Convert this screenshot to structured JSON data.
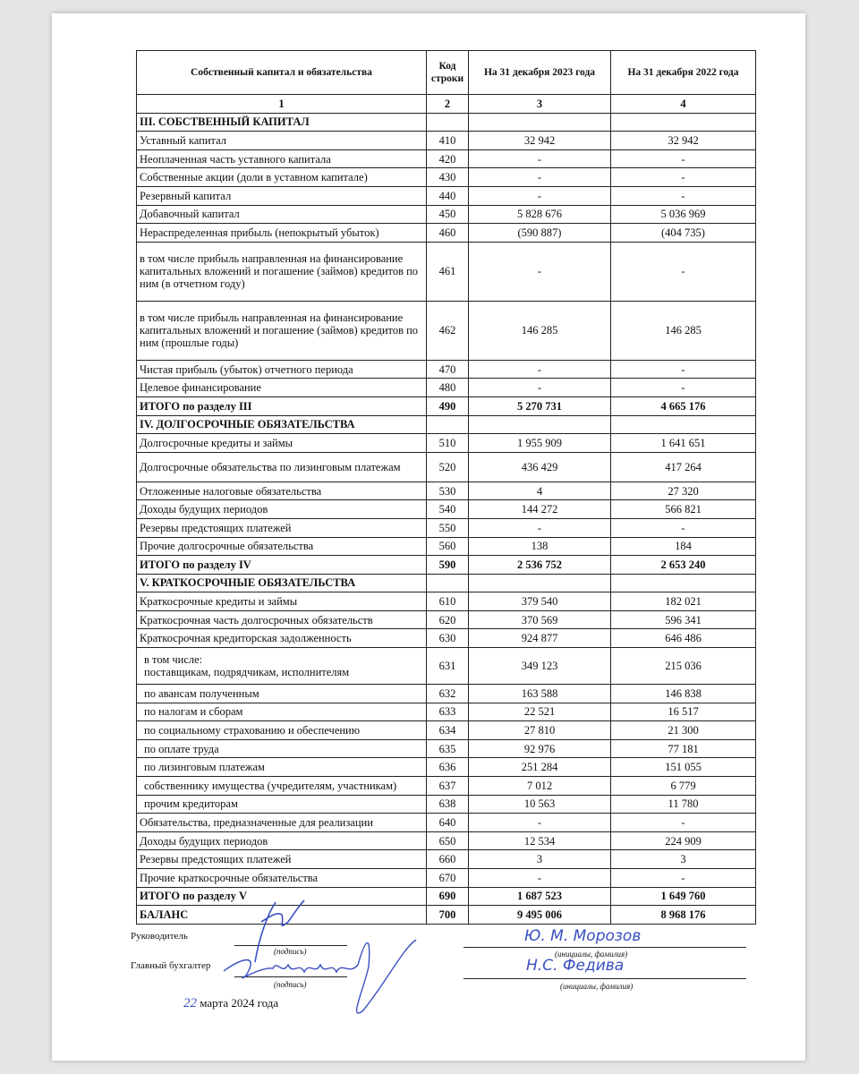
{
  "table": {
    "headers": [
      "Собственный капитал и обязательства",
      "Код строки",
      "На 31 декабря 2023 года",
      "На 31 декабря 2022 года"
    ],
    "column_numbers": [
      "1",
      "2",
      "3",
      "4"
    ],
    "rows": [
      {
        "name": "III. СОБСТВЕННЫЙ КАПИТАЛ",
        "code": "",
        "v2023": "",
        "v2022": "",
        "type": "sec"
      },
      {
        "name": "Уставный капитал",
        "code": "410",
        "v2023": "32 942",
        "v2022": "32 942"
      },
      {
        "name": "Неоплаченная часть уставного капитала",
        "code": "420",
        "v2023": "-",
        "v2022": "-"
      },
      {
        "name": "Собственные акции (доли в уставном капитале)",
        "code": "430",
        "v2023": "-",
        "v2022": "-"
      },
      {
        "name": "Резервный капитал",
        "code": "440",
        "v2023": "-",
        "v2022": "-"
      },
      {
        "name": "Добавочный капитал",
        "code": "450",
        "v2023": "5 828 676",
        "v2022": "5 036 969"
      },
      {
        "name": "Нераспределенная прибыль (непокрытый убыток)",
        "code": "460",
        "v2023": "(590 887)",
        "v2022": "(404 735)"
      },
      {
        "name": "в том числе прибыль направленная на финансирование капитальных вложений и погашение (займов) кредитов по ним (в отчетном году)",
        "code": "461",
        "v2023": "-",
        "v2022": "-",
        "type": "tall"
      },
      {
        "name": "в том числе прибыль направленная на финансирование капитальных вложений и погашение (займов) кредитов по ним (прошлые годы)",
        "code": "462",
        "v2023": "146 285",
        "v2022": "146 285",
        "type": "tall"
      },
      {
        "name": "Чистая прибыль (убыток) отчетного периода",
        "code": "470",
        "v2023": "-",
        "v2022": "-"
      },
      {
        "name": "Целевое финансирование",
        "code": "480",
        "v2023": "-",
        "v2022": "-"
      },
      {
        "name": "ИТОГО по разделу III",
        "code": "490",
        "v2023": "5 270 731",
        "v2022": "4 665 176",
        "type": "b"
      },
      {
        "name": "IV. ДОЛГОСРОЧНЫЕ ОБЯЗАТЕЛЬСТВА",
        "code": "",
        "v2023": "",
        "v2022": "",
        "type": "sec"
      },
      {
        "name": "Долгосрочные кредиты и займы",
        "code": "510",
        "v2023": "1 955 909",
        "v2022": "1 641 651"
      },
      {
        "name": "Долгосрочные обязательства по лизинговым платежам",
        "code": "520",
        "v2023": "436 429",
        "v2022": "417 264",
        "type": "mid"
      },
      {
        "name": "Отложенные налоговые обязательства",
        "code": "530",
        "v2023": "4",
        "v2022": "27 320"
      },
      {
        "name": "Доходы будущих периодов",
        "code": "540",
        "v2023": "144 272",
        "v2022": "566 821"
      },
      {
        "name": "Резервы предстоящих платежей",
        "code": "550",
        "v2023": "-",
        "v2022": "-"
      },
      {
        "name": "Прочие долгосрочные обязательства",
        "code": "560",
        "v2023": "138",
        "v2022": "184"
      },
      {
        "name": "ИТОГО по разделу IV",
        "code": "590",
        "v2023": "2 536 752",
        "v2022": "2 653 240",
        "type": "b"
      },
      {
        "name": "V. КРАТКОСРОЧНЫЕ ОБЯЗАТЕЛЬСТВА",
        "code": "",
        "v2023": "",
        "v2022": "",
        "type": "sec"
      },
      {
        "name": "Краткосрочные кредиты и займы",
        "code": "610",
        "v2023": "379 540",
        "v2022": "182 021"
      },
      {
        "name": "Краткосрочная часть долгосрочных обязательств",
        "code": "620",
        "v2023": "370 569",
        "v2022": "596 341"
      },
      {
        "name": "Краткосрочная кредиторская задолженность",
        "code": "630",
        "v2023": "924 877",
        "v2022": "646 486"
      },
      {
        "name": "в том числе:\nпоставщикам, подрядчикам, исполнителям",
        "code": "631",
        "v2023": "349 123",
        "v2022": "215 036",
        "type": "two ind"
      },
      {
        "name": "по авансам полученным",
        "code": "632",
        "v2023": "163 588",
        "v2022": "146 838",
        "type": "ind"
      },
      {
        "name": "по налогам и сборам",
        "code": "633",
        "v2023": "22 521",
        "v2022": "16 517",
        "type": "ind"
      },
      {
        "name": "по социальному страхованию и обеспечению",
        "code": "634",
        "v2023": "27 810",
        "v2022": "21 300",
        "type": "ind"
      },
      {
        "name": "по оплате труда",
        "code": "635",
        "v2023": "92 976",
        "v2022": "77 181",
        "type": "ind"
      },
      {
        "name": "по лизинговым платежам",
        "code": "636",
        "v2023": "251 284",
        "v2022": "151 055",
        "type": "ind"
      },
      {
        "name": "собственнику имущества (учредителям, участникам)",
        "code": "637",
        "v2023": "7 012",
        "v2022": "6 779",
        "type": "ind"
      },
      {
        "name": "прочим кредиторам",
        "code": "638",
        "v2023": "10 563",
        "v2022": "11 780",
        "type": "ind"
      },
      {
        "name": "Обязательства, предназначенные для реализации",
        "code": "640",
        "v2023": "-",
        "v2022": "-"
      },
      {
        "name": "Доходы будущих периодов",
        "code": "650",
        "v2023": "12 534",
        "v2022": "224 909"
      },
      {
        "name": "Резервы предстоящих платежей",
        "code": "660",
        "v2023": "3",
        "v2022": "3"
      },
      {
        "name": "Прочие краткосрочные обязательства",
        "code": "670",
        "v2023": "-",
        "v2022": "-"
      },
      {
        "name": "ИТОГО по разделу V",
        "code": "690",
        "v2023": "1 687 523",
        "v2022": "1 649 760",
        "type": "b"
      },
      {
        "name": "БАЛАНС",
        "code": "700",
        "v2023": "9 495 006",
        "v2022": "8 968 176",
        "type": "b"
      }
    ]
  },
  "signatures": {
    "head_label": "Руководитель",
    "accountant_label": "Главный бухгалтер",
    "signature_caption": "(подпись)",
    "name_caption": "(инициалы, фамилия)",
    "head_name": "Ю. М. Морозов",
    "accountant_name": "Н.С. Федива",
    "date_day": "22",
    "date_rest": "марта  2024 года"
  },
  "colors": {
    "ink": "#3a4fc0"
  }
}
